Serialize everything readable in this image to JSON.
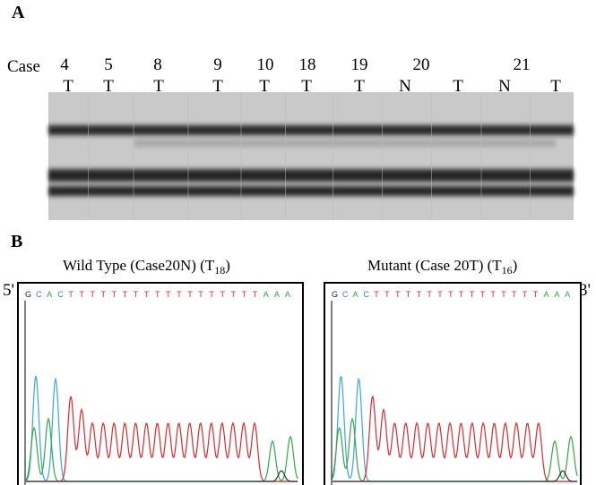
{
  "panel_a": {
    "label": "A",
    "row_label": "Case",
    "cases": [
      "4",
      "5",
      "8",
      "9",
      "10",
      "18",
      "19",
      "20",
      "21"
    ],
    "lanes": [
      "T",
      "T",
      "T",
      "T",
      "T",
      "T",
      "T",
      "N",
      "T",
      "N",
      "T"
    ]
  },
  "panel_b": {
    "label": "B",
    "five_prime": "5'",
    "three_prime": "3'",
    "left": {
      "title": "Wild Type (Case20N) (T",
      "subscript": "18",
      "title_end": ")",
      "sequence": [
        "G",
        "C",
        "A",
        "C",
        "T",
        "T",
        "T",
        "T",
        "T",
        "T",
        "T",
        "T",
        "T",
        "T",
        "T",
        "T",
        "T",
        "T",
        "T",
        "T",
        "T",
        "T",
        "A",
        "A",
        "A"
      ]
    },
    "right": {
      "title": "Mutant (Case 20T) (T",
      "subscript": "16",
      "title_end": ")",
      "sequence": [
        "G",
        "C",
        "A",
        "C",
        "T",
        "T",
        "T",
        "T",
        "T",
        "T",
        "T",
        "T",
        "T",
        "T",
        "T",
        "T",
        "T",
        "T",
        "T",
        "T",
        "A",
        "A",
        "A"
      ]
    }
  }
}
